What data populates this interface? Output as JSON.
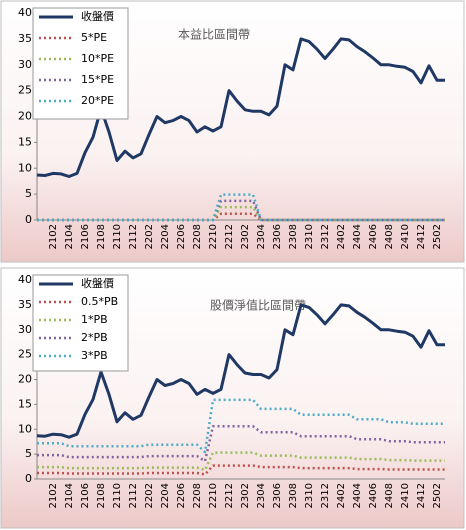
{
  "chart_data": [
    {
      "type": "line",
      "title": "本益比區間帶",
      "legend": "upper left",
      "categories": [
        null,
        null,
        "2102",
        null,
        "2104",
        null,
        "2106",
        null,
        "2108",
        null,
        "2110",
        null,
        "2112",
        null,
        "2202",
        null,
        "2204",
        null,
        "2206",
        null,
        "2208",
        null,
        "2210",
        null,
        "2212",
        null,
        "2302",
        null,
        "2304",
        null,
        "2306",
        null,
        "2308",
        null,
        "2310",
        null,
        "2312",
        null,
        "2402",
        null,
        "2404",
        null,
        "2406",
        null,
        "2408",
        null,
        "2410",
        null,
        "2412",
        null,
        "2502",
        null
      ],
      "ylim": [
        0,
        40
      ],
      "yticks": [
        0,
        5,
        10,
        15,
        20,
        25,
        30,
        35,
        40
      ],
      "series": [
        {
          "name": "收盤價",
          "color": "#1f3864",
          "style": "solid",
          "values": [
            8.7,
            8.6,
            9,
            8.9,
            8.4,
            9,
            13,
            16,
            21.5,
            17,
            11.5,
            13.3,
            12,
            12.8,
            16.5,
            20,
            18.8,
            19.2,
            20,
            19.2,
            17,
            18,
            17.2,
            18,
            25,
            23,
            21.3,
            21,
            21,
            20.3,
            22,
            30,
            29,
            35,
            34.5,
            33,
            31.2,
            33,
            35,
            34.8,
            33.5,
            32.5,
            31.3,
            30,
            30,
            29.7,
            29.5,
            28.7,
            26.5,
            29.8,
            27,
            27
          ]
        },
        {
          "name": "5*PE",
          "color": "#c0504d",
          "style": "dotted",
          "values": [
            0,
            0,
            0,
            0,
            0,
            0,
            0,
            0,
            0,
            0,
            0,
            0,
            0,
            0,
            0,
            0,
            0,
            0,
            0,
            0,
            0,
            0,
            0,
            1.2,
            1.2,
            1.2,
            1.2,
            1.2,
            0,
            0,
            0,
            0,
            0,
            0,
            0,
            0,
            0,
            0,
            0,
            0,
            0,
            0,
            0,
            0,
            0,
            0,
            0,
            0,
            0,
            0,
            0,
            0
          ]
        },
        {
          "name": "10*PE",
          "color": "#9bbb59",
          "style": "dotted",
          "values": [
            0,
            0,
            0,
            0,
            0,
            0,
            0,
            0,
            0,
            0,
            0,
            0,
            0,
            0,
            0,
            0,
            0,
            0,
            0,
            0,
            0,
            0,
            0,
            2.5,
            2.5,
            2.5,
            2.5,
            2.5,
            0,
            0,
            0,
            0,
            0,
            0,
            0,
            0,
            0,
            0,
            0,
            0,
            0,
            0,
            0,
            0,
            0,
            0,
            0,
            0,
            0,
            0,
            0,
            0
          ]
        },
        {
          "name": "15*PE",
          "color": "#8064a2",
          "style": "dotted",
          "values": [
            0,
            0,
            0,
            0,
            0,
            0,
            0,
            0,
            0,
            0,
            0,
            0,
            0,
            0,
            0,
            0,
            0,
            0,
            0,
            0,
            0,
            0,
            0,
            3.7,
            3.7,
            3.7,
            3.7,
            3.7,
            0,
            0,
            0,
            0,
            0,
            0,
            0,
            0,
            0,
            0,
            0,
            0,
            0,
            0,
            0,
            0,
            0,
            0,
            0,
            0,
            0,
            0,
            0,
            0
          ]
        },
        {
          "name": "20*PE",
          "color": "#4bacc6",
          "style": "dotted",
          "values": [
            0,
            0,
            0,
            0,
            0,
            0,
            0,
            0,
            0,
            0,
            0,
            0,
            0,
            0,
            0,
            0,
            0,
            0,
            0,
            0,
            0,
            0,
            0,
            4.9,
            4.9,
            4.9,
            4.9,
            4.9,
            0,
            0,
            0,
            0,
            0,
            0,
            0,
            0,
            0,
            0,
            0,
            0,
            0,
            0,
            0,
            0,
            0,
            0,
            0,
            0,
            0,
            0,
            0,
            0
          ]
        }
      ]
    },
    {
      "type": "line",
      "title": "股價淨值比區間帶",
      "legend": "upper left",
      "categories": [
        null,
        null,
        "2102",
        null,
        "2104",
        null,
        "2106",
        null,
        "2108",
        null,
        "2110",
        null,
        "2112",
        null,
        "2202",
        null,
        "2204",
        null,
        "2206",
        null,
        "2208",
        null,
        "2210",
        null,
        "2212",
        null,
        "2302",
        null,
        "2304",
        null,
        "2306",
        null,
        "2308",
        null,
        "2310",
        null,
        "2312",
        null,
        "2402",
        null,
        "2404",
        null,
        "2406",
        null,
        "2408",
        null,
        "2410",
        null,
        "2412",
        null,
        "2502",
        null
      ],
      "ylim": [
        0,
        40
      ],
      "yticks": [
        0,
        5,
        10,
        15,
        20,
        25,
        30,
        35,
        40
      ],
      "series": [
        {
          "name": "收盤價",
          "color": "#1f3864",
          "style": "solid",
          "values": [
            8.7,
            8.6,
            9,
            8.9,
            8.4,
            9,
            13,
            16,
            21.5,
            17,
            11.5,
            13.3,
            12,
            12.8,
            16.5,
            20,
            18.8,
            19.2,
            20,
            19.2,
            17,
            18,
            17.2,
            18,
            25,
            23,
            21.3,
            21,
            21,
            20.3,
            22,
            30,
            29,
            35,
            34.5,
            33,
            31.2,
            33,
            35,
            34.8,
            33.5,
            32.5,
            31.3,
            30,
            30,
            29.7,
            29.5,
            28.7,
            26.5,
            29.8,
            27,
            27
          ]
        },
        {
          "name": "0.5*PB",
          "color": "#c0504d",
          "style": "dotted",
          "values": [
            1.2,
            1.2,
            1.2,
            1.2,
            1.1,
            1.1,
            1.1,
            1.1,
            1.1,
            1.1,
            1.1,
            1.1,
            1.1,
            1.1,
            1.2,
            1.2,
            1.2,
            1.2,
            1.2,
            1.2,
            1.2,
            0.9,
            2.7,
            2.7,
            2.7,
            2.7,
            2.7,
            2.7,
            2.4,
            2.4,
            2.4,
            2.4,
            2.4,
            2.2,
            2.2,
            2.2,
            2.2,
            2.2,
            2.2,
            2.2,
            2,
            2,
            2,
            2,
            1.9,
            1.9,
            1.9,
            1.9,
            1.9,
            1.9,
            1.9,
            1.9
          ]
        },
        {
          "name": "1*PB",
          "color": "#9bbb59",
          "style": "dotted",
          "values": [
            2.4,
            2.4,
            2.4,
            2.4,
            2.2,
            2.2,
            2.2,
            2.2,
            2.2,
            2.2,
            2.2,
            2.2,
            2.2,
            2.2,
            2.3,
            2.3,
            2.3,
            2.3,
            2.3,
            2.3,
            2.3,
            1.8,
            5.3,
            5.3,
            5.3,
            5.3,
            5.3,
            5.3,
            4.7,
            4.7,
            4.7,
            4.7,
            4.7,
            4.3,
            4.3,
            4.3,
            4.3,
            4.3,
            4.3,
            4.3,
            4,
            4,
            4,
            4,
            3.8,
            3.8,
            3.8,
            3.7,
            3.7,
            3.7,
            3.7,
            3.7
          ]
        },
        {
          "name": "2*PB",
          "color": "#8064a2",
          "style": "dotted",
          "values": [
            4.8,
            4.8,
            4.8,
            4.8,
            4.4,
            4.4,
            4.4,
            4.4,
            4.4,
            4.4,
            4.4,
            4.4,
            4.4,
            4.4,
            4.6,
            4.6,
            4.6,
            4.6,
            4.6,
            4.6,
            4.6,
            3.6,
            10.6,
            10.6,
            10.6,
            10.6,
            10.6,
            10.6,
            9.4,
            9.4,
            9.4,
            9.4,
            9.4,
            8.6,
            8.6,
            8.6,
            8.6,
            8.6,
            8.6,
            8.6,
            8,
            8,
            8,
            8,
            7.6,
            7.6,
            7.6,
            7.4,
            7.4,
            7.4,
            7.4,
            7.4
          ]
        },
        {
          "name": "3*PB",
          "color": "#4bacc6",
          "style": "dotted",
          "values": [
            7.2,
            7.2,
            7.2,
            7.2,
            6.6,
            6.6,
            6.6,
            6.6,
            6.6,
            6.6,
            6.6,
            6.6,
            6.6,
            6.6,
            6.9,
            6.9,
            6.9,
            6.9,
            6.9,
            6.9,
            6.9,
            5.4,
            15.9,
            15.9,
            15.9,
            15.9,
            15.9,
            15.9,
            14.1,
            14.1,
            14.1,
            14.1,
            14.1,
            12.9,
            12.9,
            12.9,
            12.9,
            12.9,
            12.9,
            12.9,
            12,
            12,
            12,
            12,
            11.4,
            11.4,
            11.4,
            11.1,
            11.1,
            11.1,
            11.1,
            11.1
          ]
        }
      ]
    }
  ]
}
